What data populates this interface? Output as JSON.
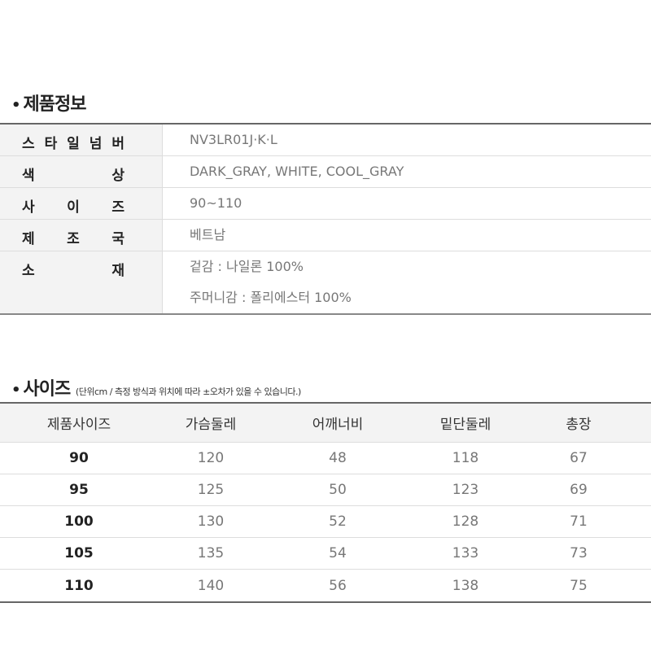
{
  "product_info": {
    "title": "제품정보",
    "rows": [
      {
        "label": [
          "스",
          "타",
          "일",
          "넘",
          "버"
        ],
        "values": [
          "NV3LR01J·K·L"
        ]
      },
      {
        "label": [
          "색",
          "상"
        ],
        "values": [
          "DARK_GRAY, WHITE, COOL_GRAY"
        ]
      },
      {
        "label": [
          "사",
          "이",
          "즈"
        ],
        "values": [
          "90~110"
        ]
      },
      {
        "label": [
          "제",
          "조",
          "국"
        ],
        "values": [
          "베트남"
        ]
      },
      {
        "label": [
          "소",
          "재"
        ],
        "values": [
          "겉감 : 나일론 100%",
          "주머니감 : 폴리에스터 100%"
        ]
      }
    ]
  },
  "size": {
    "title": "사이즈",
    "note": "(단위cm / 측정 방식과 위치에 따라 ±오차가 있을 수 있습니다.)",
    "headers": [
      "제품사이즈",
      "가슴둘레",
      "어깨너비",
      "밑단둘레",
      "총장"
    ],
    "rows": [
      [
        "90",
        "120",
        "48",
        "118",
        "67"
      ],
      [
        "95",
        "125",
        "50",
        "123",
        "69"
      ],
      [
        "100",
        "130",
        "52",
        "128",
        "71"
      ],
      [
        "105",
        "135",
        "54",
        "133",
        "73"
      ],
      [
        "110",
        "140",
        "56",
        "138",
        "75"
      ]
    ]
  }
}
